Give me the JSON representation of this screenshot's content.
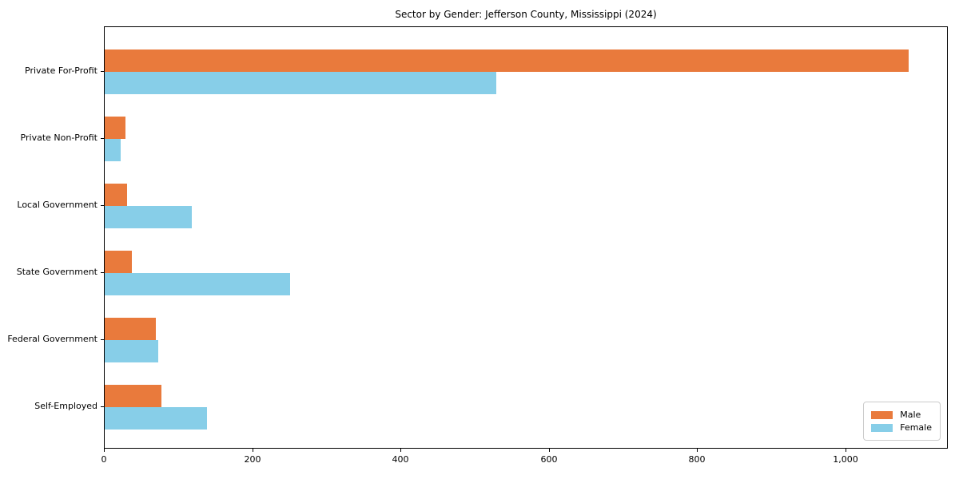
{
  "chart_data": {
    "type": "bar",
    "orientation": "horizontal",
    "title": "Sector by Gender: Jefferson County, Mississippi (2024)",
    "categories": [
      "Private For-Profit",
      "Private Non-Profit",
      "Local Government",
      "State Government",
      "Federal Government",
      "Self-Employed"
    ],
    "series": [
      {
        "name": "Male",
        "color": "#e97a3c",
        "values": [
          1084,
          28,
          30,
          37,
          69,
          76
        ]
      },
      {
        "name": "Female",
        "color": "#87cee8",
        "values": [
          528,
          22,
          117,
          250,
          72,
          138
        ]
      }
    ],
    "xlabel": "",
    "ylabel": "",
    "xlim": [
      0,
      1138
    ],
    "xticks": [
      0,
      200,
      400,
      600,
      800,
      1000
    ],
    "xtick_labels": [
      "0",
      "200",
      "400",
      "600",
      "800",
      "1,000"
    ],
    "grid": false,
    "legend": {
      "position": "lower right",
      "entries": [
        "Male",
        "Female"
      ]
    }
  }
}
